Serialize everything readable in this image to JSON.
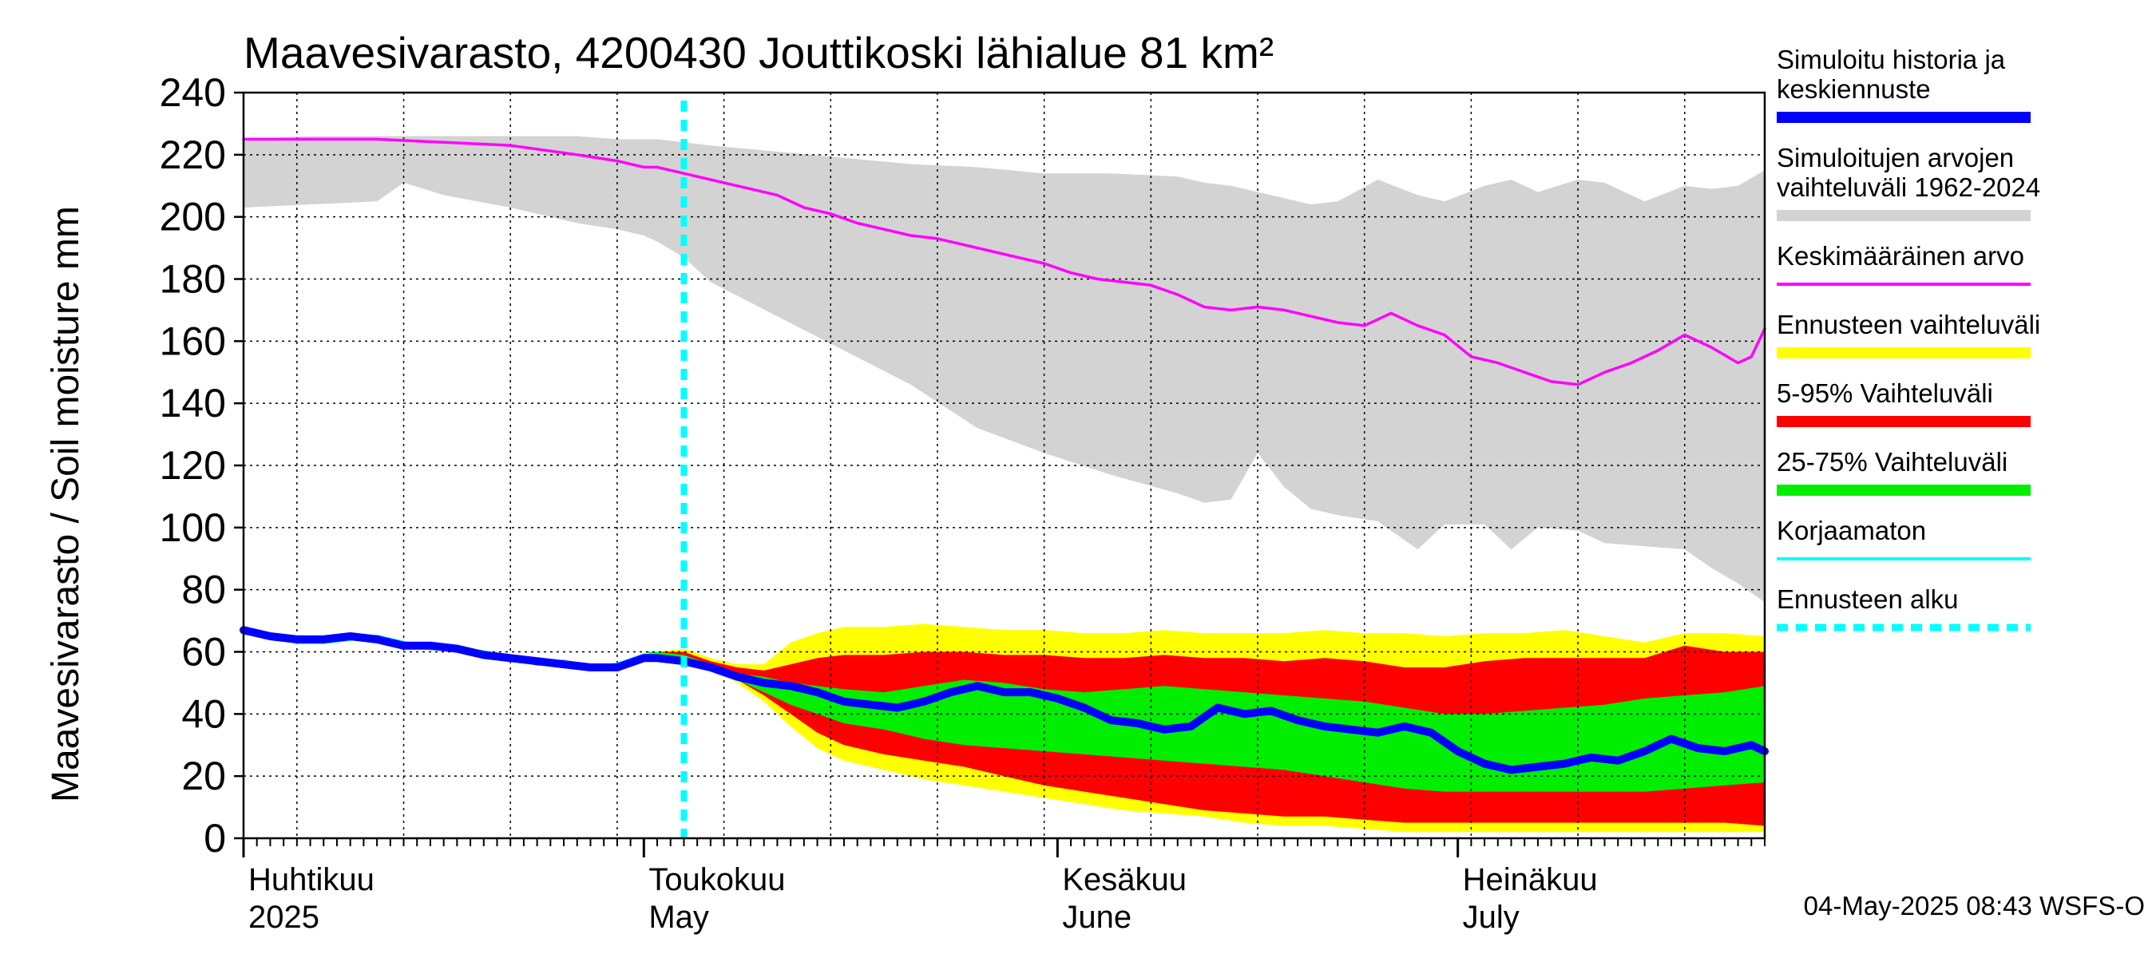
{
  "chart_data": {
    "type": "area",
    "title": "Maavesivarasto, 4200430 Jouttikoski lähialue 81 km²",
    "ylabel": "Maavesivarasto / Soil moisture   mm",
    "xlabel": "",
    "ylim": [
      0,
      240
    ],
    "yticks": [
      0,
      20,
      40,
      60,
      80,
      100,
      120,
      140,
      160,
      180,
      200,
      220,
      240
    ],
    "grid": true,
    "x_range_days": [
      0,
      114
    ],
    "forecast_start_day": 33,
    "month_labels": [
      {
        "line1": "Huhtikuu",
        "line2": "2025",
        "day": 0
      },
      {
        "line1": "Toukokuu",
        "line2": "May",
        "day": 30
      },
      {
        "line1": "Kesäkuu",
        "line2": "June",
        "day": 61
      },
      {
        "line1": "Heinäkuu",
        "line2": "July",
        "day": 91
      }
    ],
    "series": [
      {
        "name": "Simuloitujen arvojen vaihteluväli 1962-2024",
        "kind": "band",
        "color": "#d3d3d3",
        "x": [
          0,
          5,
          10,
          12,
          15,
          20,
          25,
          28,
          30,
          31,
          33,
          35,
          40,
          45,
          50,
          55,
          60,
          65,
          70,
          72,
          74,
          76,
          78,
          80,
          82,
          85,
          88,
          90,
          93,
          95,
          97,
          100,
          102,
          105,
          108,
          110,
          112,
          114
        ],
        "upper": [
          225,
          226,
          226,
          226,
          226,
          226,
          226,
          225,
          225,
          225,
          224,
          223,
          221,
          219,
          217,
          216,
          214,
          214,
          213,
          211,
          210,
          208,
          206,
          204,
          205,
          212,
          207,
          205,
          210,
          212,
          208,
          212,
          211,
          205,
          210,
          209,
          210,
          215
        ],
        "lower": [
          203,
          204,
          205,
          211,
          207,
          203,
          198,
          196,
          194,
          192,
          187,
          179,
          168,
          157,
          146,
          132,
          124,
          117,
          111,
          108,
          109,
          124,
          113,
          106,
          104,
          102,
          93,
          101,
          101,
          93,
          100,
          99,
          95,
          94,
          93,
          87,
          82,
          76
        ]
      },
      {
        "name": "Ennusteen vaihteluväli",
        "kind": "band",
        "color": "#ffff00",
        "x": [
          30,
          31,
          33,
          35,
          37,
          39,
          41,
          43,
          45,
          48,
          51,
          54,
          57,
          60,
          63,
          66,
          69,
          72,
          75,
          78,
          81,
          84,
          87,
          90,
          93,
          96,
          99,
          102,
          105,
          108,
          111,
          114
        ],
        "upper": [
          60,
          60,
          61,
          58,
          56,
          56,
          63,
          66,
          68,
          68,
          69,
          68,
          67,
          67,
          66,
          66,
          67,
          66,
          66,
          66,
          67,
          66,
          66,
          65,
          66,
          66,
          67,
          65,
          63,
          66,
          66,
          65
        ],
        "lower": [
          60,
          59,
          58,
          55,
          50,
          44,
          36,
          29,
          25,
          22,
          19,
          17,
          15,
          13,
          11,
          9,
          8,
          7,
          5,
          4,
          4,
          3,
          2,
          2,
          2,
          2,
          2,
          2,
          2,
          2,
          2,
          2
        ]
      },
      {
        "name": "5-95% Vaihteluväli",
        "kind": "band",
        "color": "#ff0000",
        "x": [
          30,
          31,
          33,
          35,
          37,
          39,
          41,
          43,
          45,
          48,
          51,
          54,
          57,
          60,
          63,
          66,
          69,
          72,
          75,
          78,
          81,
          84,
          87,
          90,
          93,
          96,
          99,
          102,
          105,
          108,
          111,
          114
        ],
        "upper": [
          60,
          60,
          60,
          57,
          55,
          54,
          56,
          58,
          59,
          59,
          60,
          60,
          59,
          59,
          58,
          58,
          59,
          58,
          58,
          57,
          58,
          57,
          55,
          55,
          57,
          58,
          58,
          58,
          58,
          62,
          60,
          60
        ],
        "lower": [
          60,
          59,
          58,
          55,
          51,
          46,
          40,
          34,
          30,
          27,
          25,
          23,
          20,
          17,
          15,
          13,
          11,
          9,
          8,
          7,
          7,
          6,
          5,
          5,
          5,
          5,
          5,
          5,
          5,
          5,
          5,
          4
        ]
      },
      {
        "name": "25-75% Vaihteluväli",
        "kind": "band",
        "color": "#00ee00",
        "x": [
          30,
          31,
          33,
          35,
          37,
          39,
          41,
          43,
          45,
          48,
          51,
          54,
          57,
          60,
          63,
          66,
          69,
          72,
          75,
          78,
          81,
          84,
          87,
          90,
          93,
          96,
          99,
          102,
          105,
          108,
          111,
          114
        ],
        "upper": [
          60,
          60,
          59,
          56,
          53,
          52,
          50,
          49,
          48,
          47,
          49,
          51,
          50,
          48,
          47,
          48,
          49,
          48,
          47,
          46,
          45,
          44,
          42,
          40,
          40,
          41,
          42,
          43,
          45,
          46,
          47,
          49
        ],
        "lower": [
          60,
          59,
          58,
          55,
          51,
          47,
          43,
          40,
          37,
          35,
          32,
          30,
          29,
          28,
          27,
          26,
          25,
          24,
          23,
          22,
          20,
          18,
          16,
          15,
          15,
          15,
          15,
          15,
          15,
          16,
          17,
          18
        ]
      },
      {
        "name": "Keskimääräinen arvo",
        "kind": "line",
        "color": "#ff00ff",
        "x": [
          0,
          5,
          10,
          15,
          20,
          25,
          28,
          30,
          31,
          33,
          35,
          37,
          40,
          42,
          44,
          46,
          48,
          50,
          52,
          54,
          56,
          58,
          60,
          62,
          64,
          66,
          68,
          70,
          72,
          74,
          76,
          78,
          80,
          82,
          84,
          86,
          88,
          90,
          92,
          94,
          96,
          98,
          100,
          102,
          104,
          106,
          108,
          110,
          112,
          113,
          114
        ],
        "values": [
          225,
          225,
          225,
          224,
          223,
          220,
          218,
          216,
          216,
          214,
          212,
          210,
          207,
          203,
          201,
          198,
          196,
          194,
          193,
          191,
          189,
          187,
          185,
          182,
          180,
          179,
          178,
          175,
          171,
          170,
          171,
          170,
          168,
          166,
          165,
          169,
          165,
          162,
          155,
          153,
          150,
          147,
          146,
          150,
          153,
          157,
          162,
          158,
          153,
          155,
          164
        ]
      },
      {
        "name": "Korjaamaton",
        "kind": "line",
        "color": "#00ffff",
        "x": [
          0,
          2,
          4,
          6,
          8,
          10,
          12,
          14,
          16,
          18,
          20,
          22,
          24,
          26,
          28,
          30,
          31
        ],
        "values": [
          66,
          65,
          63,
          63,
          64,
          65,
          63,
          61,
          61,
          60,
          58,
          56,
          57,
          55,
          56,
          59,
          59
        ]
      },
      {
        "name": "Simuloitu historia ja keskiennuste",
        "kind": "line",
        "color": "#0000ff",
        "x": [
          0,
          2,
          4,
          6,
          8,
          10,
          12,
          14,
          16,
          18,
          20,
          22,
          24,
          26,
          28,
          30,
          31,
          33,
          35,
          37,
          39,
          41,
          43,
          45,
          47,
          49,
          51,
          53,
          55,
          57,
          59,
          61,
          63,
          65,
          67,
          69,
          71,
          73,
          75,
          77,
          79,
          81,
          83,
          85,
          87,
          89,
          91,
          93,
          95,
          97,
          99,
          101,
          103,
          105,
          107,
          109,
          111,
          113,
          114
        ],
        "values": [
          67,
          65,
          64,
          64,
          65,
          64,
          62,
          62,
          61,
          59,
          58,
          57,
          56,
          55,
          55,
          58,
          58,
          57,
          55,
          52,
          50,
          49,
          47,
          44,
          43,
          42,
          44,
          47,
          49,
          47,
          47,
          45,
          42,
          38,
          37,
          35,
          36,
          42,
          40,
          41,
          38,
          36,
          35,
          34,
          36,
          34,
          28,
          24,
          22,
          23,
          24,
          26,
          25,
          28,
          32,
          29,
          28,
          30,
          28
        ]
      }
    ],
    "legend": [
      {
        "label": "Simuloitu historia ja\nkeskiennuste",
        "color": "#0000ff",
        "style": "thick"
      },
      {
        "label": "Simuloitujen arvojen\nvaihteluväli 1962-2024",
        "color": "#d3d3d3",
        "style": "thick"
      },
      {
        "label": "Keskimääräinen arvo",
        "color": "#ff00ff",
        "style": "line"
      },
      {
        "label": "Ennusteen vaihteluväli",
        "color": "#ffff00",
        "style": "thick"
      },
      {
        "label": "5-95% Vaihteluväli",
        "color": "#ff0000",
        "style": "thick"
      },
      {
        "label": "25-75% Vaihteluväli",
        "color": "#00ee00",
        "style": "thick"
      },
      {
        "label": "Korjaamaton",
        "color": "#00ffff",
        "style": "line"
      },
      {
        "label": "Ennusteen alku",
        "color": "#00ffff",
        "style": "dashed"
      }
    ],
    "legend_placement": "right",
    "footer": "04-May-2025 08:43 WSFS-O"
  }
}
